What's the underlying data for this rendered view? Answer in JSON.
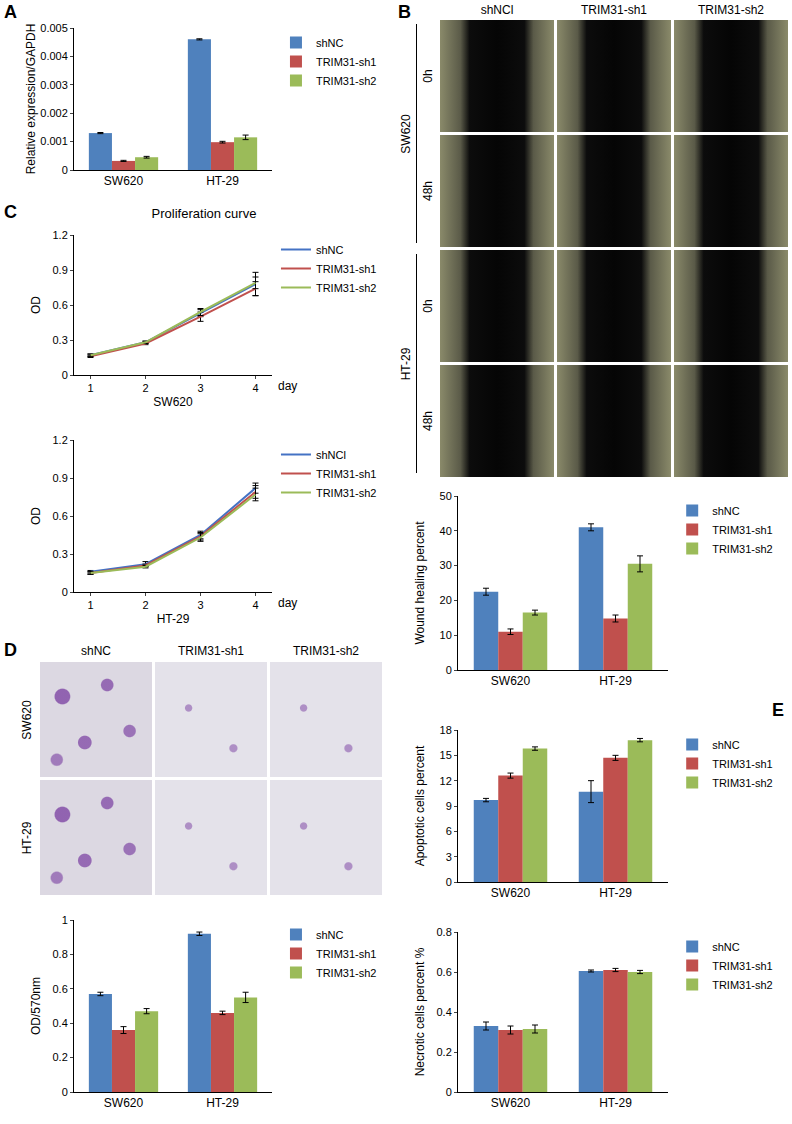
{
  "panels": [
    "A",
    "B",
    "C",
    "D",
    "E"
  ],
  "wound_images": {
    "columns": [
      "shNCl",
      "TRIM31-sh1",
      "TRIM31-sh2"
    ],
    "rows": [
      {
        "cell_line": "SW620",
        "times": [
          "0h",
          "48h"
        ]
      },
      {
        "cell_line": "HT-29",
        "times": [
          "0h",
          "48h"
        ]
      }
    ]
  },
  "invasion_images": {
    "columns": [
      "shNC",
      "TRIM31-sh1",
      "TRIM31-sh2"
    ],
    "rows": [
      "SW620",
      "HT-29"
    ]
  },
  "chart_data": [
    {
      "type": "bar",
      "ylabel": "Relative expression/GAPDH",
      "categories": [
        "SW620",
        "HT-29"
      ],
      "series": [
        {
          "name": "shNC",
          "color": "#4f81bd",
          "values": [
            0.0013,
            0.0046
          ],
          "errors": [
            2e-05,
            2e-05
          ]
        },
        {
          "name": "TRIM31-sh1",
          "color": "#c0504d",
          "values": [
            0.00032,
            0.00098
          ],
          "errors": [
            2e-05,
            3e-05
          ]
        },
        {
          "name": "TRIM31-sh2",
          "color": "#9bbb59",
          "values": [
            0.00045,
            0.00115
          ],
          "errors": [
            3e-05,
            8e-05
          ]
        }
      ],
      "ylim": [
        0,
        0.005
      ],
      "yticks": [
        0,
        0.001,
        0.002,
        0.003,
        0.004,
        0.005
      ],
      "grid": false,
      "legend": "right"
    },
    {
      "type": "bar",
      "ylabel": "Wound healing percent",
      "categories": [
        "SW620",
        "HT-29"
      ],
      "series": [
        {
          "name": "shNC",
          "color": "#4f81bd",
          "values": [
            22.5,
            41
          ],
          "errors": [
            1,
            1
          ]
        },
        {
          "name": "TRIM31-sh1",
          "color": "#c0504d",
          "values": [
            11,
            14.8
          ],
          "errors": [
            0.8,
            1
          ]
        },
        {
          "name": "TRIM31-sh2",
          "color": "#9bbb59",
          "values": [
            16.5,
            30.5
          ],
          "errors": [
            0.7,
            2.3
          ]
        }
      ],
      "ylim": [
        0,
        50
      ],
      "yticks": [
        0,
        10,
        20,
        30,
        40,
        50
      ],
      "grid": false,
      "legend": "right"
    },
    {
      "type": "line",
      "title": "Proliferation curve",
      "ylabel": "OD",
      "xlabel": "day",
      "caption": "SW620",
      "x": [
        1,
        2,
        3,
        4
      ],
      "series": [
        {
          "name": "shNC",
          "color": "#4472c4",
          "values": [
            0.17,
            0.28,
            0.53,
            0.78
          ],
          "errors": [
            0.01,
            0.01,
            0.03,
            0.1
          ]
        },
        {
          "name": "TRIM31-sh1",
          "color": "#c0504d",
          "values": [
            0.16,
            0.27,
            0.5,
            0.74
          ],
          "errors": [
            0.01,
            0.01,
            0.04,
            0.06
          ]
        },
        {
          "name": "TRIM31-sh2",
          "color": "#9bbb59",
          "values": [
            0.17,
            0.28,
            0.54,
            0.79
          ],
          "errors": [
            0.01,
            0.01,
            0.03,
            0.05
          ]
        }
      ],
      "xlim": [
        0.7,
        4.3
      ],
      "xticks": [
        1,
        2,
        3,
        4
      ],
      "ylim": [
        0,
        1.2
      ],
      "yticks": [
        0,
        0.3,
        0.6,
        0.9,
        1.2
      ],
      "grid": false,
      "legend": "right"
    },
    {
      "type": "line",
      "ylabel": "OD",
      "xlabel": "day",
      "caption": "HT-29",
      "x": [
        1,
        2,
        3,
        4
      ],
      "series": [
        {
          "name": "shNCl",
          "color": "#4472c4",
          "values": [
            0.16,
            0.22,
            0.45,
            0.82
          ],
          "errors": [
            0.01,
            0.02,
            0.03,
            0.04
          ]
        },
        {
          "name": "TRIM31-sh1",
          "color": "#c0504d",
          "values": [
            0.15,
            0.21,
            0.44,
            0.79
          ],
          "errors": [
            0.01,
            0.01,
            0.03,
            0.05
          ]
        },
        {
          "name": "TRIM31-sh2",
          "color": "#9bbb59",
          "values": [
            0.15,
            0.2,
            0.43,
            0.77
          ],
          "errors": [
            0.01,
            0.01,
            0.03,
            0.05
          ]
        }
      ],
      "xlim": [
        0.7,
        4.3
      ],
      "xticks": [
        1,
        2,
        3,
        4
      ],
      "ylim": [
        0,
        1.2
      ],
      "yticks": [
        0,
        0.3,
        0.6,
        0.9,
        1.2
      ],
      "grid": false,
      "legend": "right"
    },
    {
      "type": "bar",
      "ylabel": "OD/570nm",
      "categories": [
        "SW620",
        "HT-29"
      ],
      "series": [
        {
          "name": "shNC",
          "color": "#4f81bd",
          "values": [
            0.57,
            0.92
          ],
          "errors": [
            0.01,
            0.01
          ]
        },
        {
          "name": "TRIM31-sh1",
          "color": "#c0504d",
          "values": [
            0.36,
            0.46
          ],
          "errors": [
            0.02,
            0.01
          ]
        },
        {
          "name": "TRIM31-sh2",
          "color": "#9bbb59",
          "values": [
            0.47,
            0.55
          ],
          "errors": [
            0.015,
            0.03
          ]
        }
      ],
      "ylim": [
        0,
        1
      ],
      "yticks": [
        0,
        0.2,
        0.4,
        0.6,
        0.8,
        1
      ],
      "grid": false,
      "legend": "right"
    },
    {
      "type": "bar",
      "ylabel": "Apoptotic cells percent",
      "categories": [
        "SW620",
        "HT-29"
      ],
      "series": [
        {
          "name": "shNC",
          "color": "#4f81bd",
          "values": [
            9.7,
            10.7
          ],
          "errors": [
            0.2,
            1.3
          ]
        },
        {
          "name": "TRIM31-sh1",
          "color": "#c0504d",
          "values": [
            12.6,
            14.7
          ],
          "errors": [
            0.3,
            0.3
          ]
        },
        {
          "name": "TRIM31-sh2",
          "color": "#9bbb59",
          "values": [
            15.8,
            16.8
          ],
          "errors": [
            0.2,
            0.2
          ]
        }
      ],
      "ylim": [
        0,
        18
      ],
      "yticks": [
        0,
        3,
        6,
        9,
        12,
        15,
        18
      ],
      "grid": false,
      "legend": "right"
    },
    {
      "type": "bar",
      "ylabel": "Necrotic cells percent %",
      "categories": [
        "SW620",
        "HT-29"
      ],
      "series": [
        {
          "name": "shNC",
          "color": "#4f81bd",
          "values": [
            0.33,
            0.605
          ],
          "errors": [
            0.02,
            0.005
          ]
        },
        {
          "name": "TRIM31-sh1",
          "color": "#c0504d",
          "values": [
            0.31,
            0.61
          ],
          "errors": [
            0.02,
            0.008
          ]
        },
        {
          "name": "TRIM31-sh2",
          "color": "#9bbb59",
          "values": [
            0.315,
            0.6
          ],
          "errors": [
            0.02,
            0.008
          ]
        }
      ],
      "ylim": [
        0,
        0.8
      ],
      "yticks": [
        0,
        0.2,
        0.4,
        0.6,
        0.8
      ],
      "grid": false,
      "legend": "right"
    }
  ]
}
